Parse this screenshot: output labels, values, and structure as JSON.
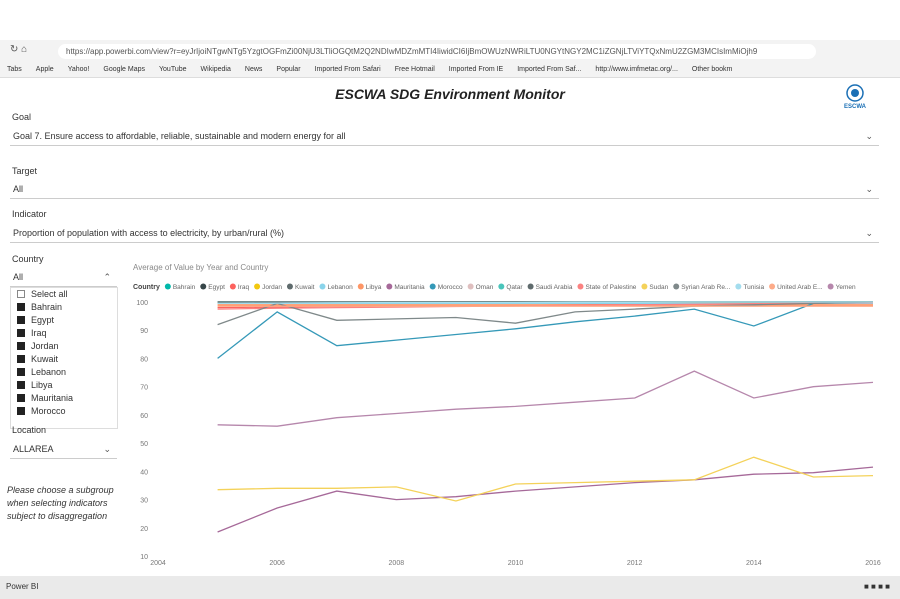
{
  "browser": {
    "url": "https://app.powerbi.com/view?r=eyJrIjoiNTgwNTg5YzgtOGFmZi00NjU3LTliOGQtM2Q2NDIwMDZmMTI4IiwidCI6IjBmOWUzNWRiLTU0NGYtNGY2MC1iZGNjLTViYTQxNmU2ZGM3MCIsImMiOjh9",
    "bookmarks": [
      "Tabs",
      "Apple",
      "Yahoo!",
      "Google Maps",
      "YouTube",
      "Wikipedia",
      "News",
      "Popular",
      "Imported From Safari",
      "Free Hotmail",
      "Imported From IE",
      "Imported From Saf...",
      "http://www.imfmetac.org/...",
      "Other bookm"
    ]
  },
  "header": {
    "title": "ESCWA SDG Environment Monitor",
    "logo": "ESCWA"
  },
  "filters": {
    "goal": {
      "label": "Goal",
      "value": "Goal 7. Ensure access to affordable, reliable, sustainable and modern energy for all"
    },
    "target": {
      "label": "Target",
      "value": "All"
    },
    "indicator": {
      "label": "Indicator",
      "value": "Proportion of population with access to electricity, by urban/rural (%)"
    },
    "country": {
      "label": "Country",
      "value": "All",
      "options": [
        "Select all",
        "Bahrain",
        "Egypt",
        "Iraq",
        "Jordan",
        "Kuwait",
        "Lebanon",
        "Libya",
        "Mauritania",
        "Morocco"
      ]
    },
    "location": {
      "label": "Location",
      "value": "ALLAREA"
    }
  },
  "note": "Please choose a subgroup when selecting indicators subject to disaggregation",
  "footer": {
    "brand": "Power BI"
  },
  "chart_data": {
    "type": "line",
    "title": "Average of Value by Year and Country",
    "legend_title": "Country",
    "x": [
      2005,
      2006,
      2007,
      2008,
      2009,
      2010,
      2011,
      2012,
      2013,
      2014,
      2015,
      2016
    ],
    "xlim": [
      2004,
      2016
    ],
    "xticks": [
      2004,
      2006,
      2008,
      2010,
      2012,
      2014,
      2016
    ],
    "ylim": [
      10,
      100
    ],
    "yticks": [
      10,
      20,
      30,
      40,
      50,
      60,
      70,
      80,
      90,
      100
    ],
    "series": [
      {
        "name": "Bahrain",
        "color": "#01B8AA",
        "values": [
          100,
          100,
          100,
          100,
          100,
          100,
          100,
          100,
          100,
          100,
          100,
          100
        ]
      },
      {
        "name": "Egypt",
        "color": "#374649",
        "values": [
          99.5,
          99.6,
          99.6,
          99.7,
          99.7,
          99.8,
          99.8,
          99.8,
          99.9,
          99.9,
          100,
          100
        ]
      },
      {
        "name": "Iraq",
        "color": "#FD625E",
        "values": [
          98,
          98.2,
          98.4,
          98.5,
          98.6,
          98.8,
          99,
          99.2,
          99.3,
          99.4,
          99.5,
          99.6
        ]
      },
      {
        "name": "Jordan",
        "color": "#F2C80F",
        "values": [
          99.5,
          99.5,
          99.6,
          99.6,
          99.7,
          99.7,
          99.8,
          99.8,
          99.9,
          99.9,
          99.9,
          100
        ]
      },
      {
        "name": "Kuwait",
        "color": "#5F6B6D",
        "values": [
          100,
          100,
          100,
          100,
          100,
          100,
          100,
          100,
          100,
          100,
          100,
          100
        ]
      },
      {
        "name": "Lebanon",
        "color": "#8AD4EB",
        "values": [
          99.5,
          99.5,
          99.5,
          99.5,
          99.5,
          99.5,
          99.5,
          99.5,
          99.5,
          99.5,
          99.5,
          99.5
        ]
      },
      {
        "name": "Libya",
        "color": "#FE9666",
        "values": [
          99,
          99,
          99,
          99,
          99,
          99,
          99,
          99,
          99,
          99,
          99,
          99
        ]
      },
      {
        "name": "Mauritania",
        "color": "#A66999",
        "values": [
          18.5,
          27,
          33,
          30,
          31,
          33,
          34.5,
          36,
          37,
          39,
          39.5,
          41.5
        ]
      },
      {
        "name": "Morocco",
        "color": "#3599B8",
        "values": [
          80,
          96.5,
          84.5,
          86.5,
          88.5,
          90.5,
          93,
          95,
          97.5,
          91.5,
          99.5,
          100
        ]
      },
      {
        "name": "Oman",
        "color": "#DFBFBF",
        "values": [
          100,
          100,
          100,
          100,
          100,
          100,
          100,
          100,
          100,
          100,
          100,
          100
        ]
      },
      {
        "name": "Qatar",
        "color": "#4AC5BB",
        "values": [
          100,
          100,
          100,
          100,
          100,
          100,
          100,
          100,
          100,
          100,
          100,
          100
        ]
      },
      {
        "name": "Saudi Arabia",
        "color": "#5F6B6D",
        "values": [
          100,
          100,
          100,
          100,
          100,
          100,
          100,
          100,
          100,
          100,
          100,
          100
        ]
      },
      {
        "name": "State of Palestine",
        "color": "#FB8281",
        "values": [
          97.5,
          97.8,
          98,
          98.2,
          98.4,
          98.6,
          98.8,
          99,
          99.2,
          99.4,
          99.6,
          99.8
        ]
      },
      {
        "name": "Sudan",
        "color": "#F4D25A",
        "values": [
          33.5,
          34,
          34,
          34.5,
          29.5,
          35.5,
          36,
          36.5,
          37,
          45,
          38,
          38.5
        ]
      },
      {
        "name": "Syrian Arab Re...",
        "color": "#7F898A",
        "values": [
          92,
          99.5,
          93.5,
          94,
          94.5,
          92.5,
          96.5,
          97.5,
          98.5,
          99,
          99.5,
          100
        ]
      },
      {
        "name": "Tunisia",
        "color": "#A4DDEE",
        "values": [
          99.5,
          99.6,
          99.7,
          99.8,
          99.8,
          99.8,
          99.9,
          99.9,
          100,
          100,
          100,
          100
        ]
      },
      {
        "name": "United Arab E...",
        "color": "#FDAB89",
        "values": [
          98.5,
          98.5,
          98.5,
          98.5,
          98.5,
          98.5,
          98.5,
          98.5,
          98.5,
          98.5,
          98.5,
          98.5
        ]
      },
      {
        "name": "Yemen",
        "color": "#B687AC",
        "values": [
          56.5,
          56,
          59,
          60.5,
          62,
          63,
          64.5,
          66,
          75.5,
          66,
          70,
          71.5
        ]
      }
    ]
  }
}
